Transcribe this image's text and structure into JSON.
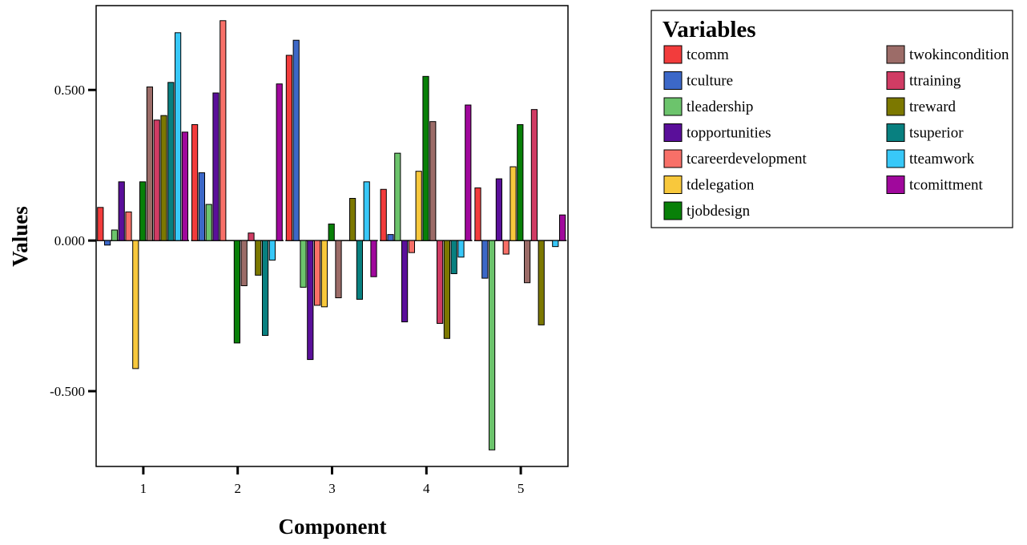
{
  "chart_data": {
    "type": "bar",
    "title": "",
    "xlabel": "Component",
    "ylabel": "Values",
    "ylim": [
      -0.75,
      0.78
    ],
    "yticks": [
      {
        "value": 0.5,
        "label": "0.500"
      },
      {
        "value": 0.0,
        "label": "0.000"
      },
      {
        "value": -0.5,
        "label": "-0.500"
      }
    ],
    "categories": [
      "1",
      "2",
      "3",
      "4",
      "5"
    ],
    "legend": {
      "title": "Variables",
      "placement": "right",
      "columns": 2
    },
    "grid": false,
    "series": [
      {
        "name": "tcomm",
        "color": "#f23c3c",
        "values": [
          0.11,
          0.385,
          0.615,
          0.17,
          0.175
        ]
      },
      {
        "name": "tculture",
        "color": "#3c68c8",
        "values": [
          -0.015,
          0.225,
          0.665,
          0.02,
          -0.125
        ]
      },
      {
        "name": "tleadership",
        "color": "#6cc46c",
        "values": [
          0.035,
          0.12,
          -0.155,
          0.29,
          -0.695
        ]
      },
      {
        "name": "topportunities",
        "color": "#5a0f9a",
        "values": [
          0.195,
          0.49,
          -0.395,
          -0.27,
          0.205
        ]
      },
      {
        "name": "tcareerdevelopment",
        "color": "#f87068",
        "values": [
          0.095,
          0.73,
          -0.215,
          -0.04,
          -0.045
        ]
      },
      {
        "name": "tdelegation",
        "color": "#f8c83c",
        "values": [
          -0.425,
          0.0,
          -0.22,
          0.23,
          0.245
        ]
      },
      {
        "name": "tjobdesign",
        "color": "#088008",
        "values": [
          0.195,
          -0.34,
          0.055,
          0.545,
          0.385
        ]
      },
      {
        "name": "twokincondition",
        "color": "#9c6c68",
        "values": [
          0.51,
          -0.15,
          -0.19,
          0.395,
          -0.14
        ]
      },
      {
        "name": "ttraining",
        "color": "#d03c64",
        "values": [
          0.4,
          0.025,
          0.0,
          -0.275,
          0.435
        ]
      },
      {
        "name": "treward",
        "color": "#7c7800",
        "values": [
          0.415,
          -0.115,
          0.14,
          -0.325,
          -0.28
        ]
      },
      {
        "name": "tsuperior",
        "color": "#088080",
        "values": [
          0.525,
          -0.315,
          -0.195,
          -0.11,
          0.0
        ]
      },
      {
        "name": "tteamwork",
        "color": "#38c8f8",
        "values": [
          0.69,
          -0.065,
          0.195,
          -0.055,
          -0.02
        ]
      },
      {
        "name": "tcomittment",
        "color": "#a0089c",
        "values": [
          0.36,
          0.52,
          -0.12,
          0.45,
          0.085
        ]
      }
    ]
  }
}
